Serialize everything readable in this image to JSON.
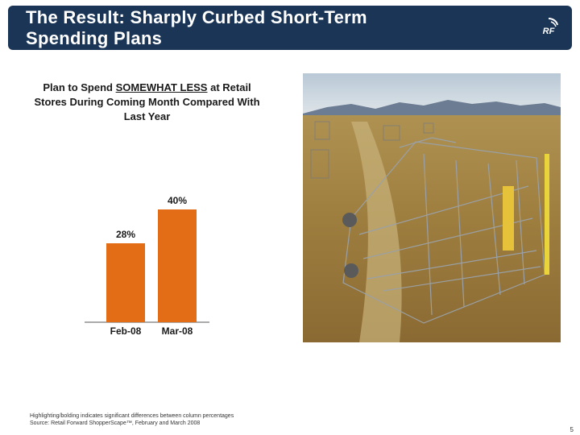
{
  "header": {
    "title": "The Result: Sharply Curbed Short-Term\nSpending Plans",
    "logo_text": "RF"
  },
  "chart_title": {
    "prefix": "Plan to Spend ",
    "emphasis": "SOMEWHAT LESS",
    "suffix": " at Retail Stores During Coming Month Compared With Last Year"
  },
  "chart_data": {
    "type": "bar",
    "categories": [
      "Feb-08",
      "Mar-08"
    ],
    "values": [
      28,
      40
    ],
    "data_labels": [
      "28%",
      "40%"
    ],
    "title": "Plan to Spend SOMEWHAT LESS at Retail Stores During Coming Month Compared With Last Year",
    "xlabel": "",
    "ylabel": "",
    "ylim": [
      0,
      50
    ],
    "grid": false,
    "bar_color": "#e36c17"
  },
  "photo": {
    "subject": "shopping-cart-in-field"
  },
  "footnote": {
    "line1": "Highlighting/bolding indicates significant differences between column percentages",
    "line2": "Source:  Retail Forward ShopperScape™, February and March 2008"
  },
  "page_number": "5",
  "colors": {
    "banner": "#1b3557",
    "accent": "#e36c17"
  }
}
